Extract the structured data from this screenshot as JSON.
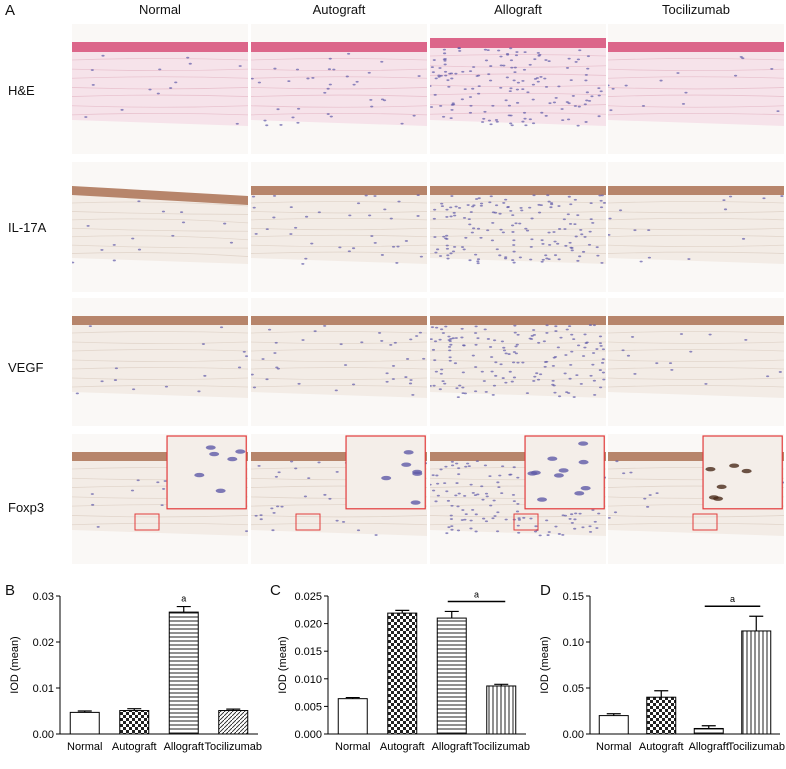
{
  "panel_a": {
    "letter": "A",
    "columns": [
      "Normal",
      "Autograft",
      "Allograft",
      "Tocilizumab"
    ],
    "rows": [
      "H&E",
      "IL-17A",
      "VEGF",
      "Foxp3"
    ],
    "stain_colors": {
      "he_epithelium": "#d9587f",
      "he_stroma": "#f6e3ea",
      "ihc_epithelium": "#b07a5d",
      "ihc_stroma": "#f3ece6",
      "nuclei": "#5f5aa8",
      "inset_border": "#e23b3b"
    }
  },
  "chart_data": [
    {
      "letter": "B",
      "type": "bar",
      "categories": [
        "Normal",
        "Autograft",
        "Allograft",
        "Tocilizumab"
      ],
      "values": [
        0.0047,
        0.0051,
        0.0265,
        0.0051
      ],
      "errors": [
        0.0003,
        0.0004,
        0.0012,
        0.0003
      ],
      "ylabel": "IOD (mean)",
      "ylim": [
        0,
        0.03
      ],
      "yticks": [
        "0.00",
        "0.01",
        "0.02",
        "0.03"
      ],
      "annotation": "a",
      "patterns": [
        "crosshatch",
        "checker",
        "horizontal",
        "diagonal"
      ]
    },
    {
      "letter": "C",
      "type": "bar",
      "categories": [
        "Normal",
        "Autograft",
        "Allograft",
        "Tocilizumab"
      ],
      "values": [
        0.0064,
        0.0219,
        0.021,
        0.0087
      ],
      "errors": [
        0.0002,
        0.0005,
        0.0012,
        0.0003
      ],
      "ylabel": "IOD (mean)",
      "ylim": [
        0,
        0.025
      ],
      "yticks": [
        "0.000",
        "0.005",
        "0.010",
        "0.015",
        "0.020",
        "0.025"
      ],
      "annotation": "a",
      "patterns": [
        "crosshatch",
        "checker",
        "horizontal",
        "vertical"
      ]
    },
    {
      "letter": "D",
      "type": "bar",
      "categories": [
        "Normal",
        "Autograft",
        "Allograft",
        "Tocilizumab"
      ],
      "values": [
        0.02,
        0.04,
        0.006,
        0.112
      ],
      "errors": [
        0.002,
        0.007,
        0.003,
        0.016
      ],
      "ylabel": "IOD (mean)",
      "ylim": [
        0,
        0.15
      ],
      "yticks": [
        "0.00",
        "0.05",
        "0.10",
        "0.15"
      ],
      "annotation": "a",
      "patterns": [
        "crosshatch",
        "checker",
        "horizontal",
        "vertical"
      ]
    }
  ]
}
